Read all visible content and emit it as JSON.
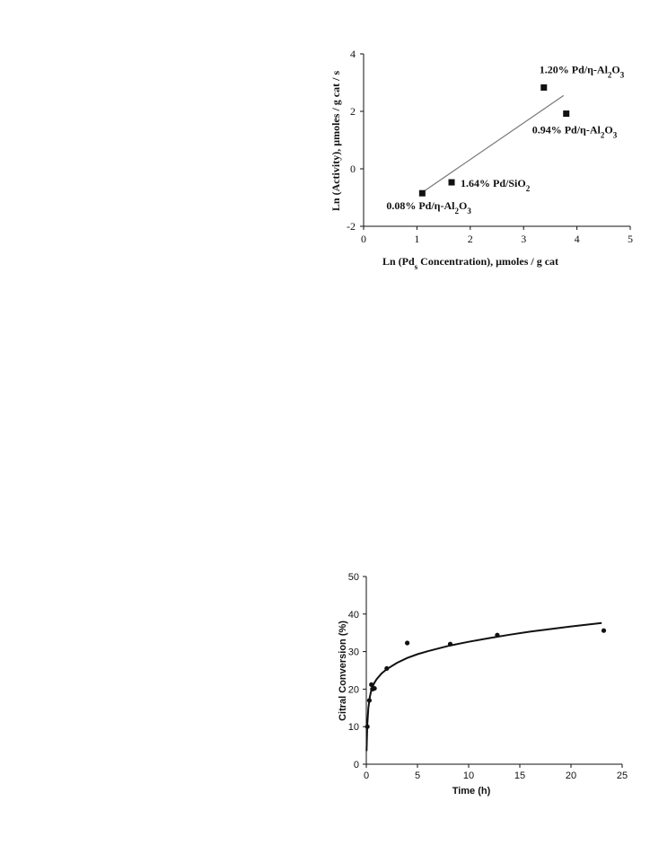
{
  "chart_data": [
    {
      "type": "scatter",
      "xlabel_parts": [
        "Ln (Pd",
        "s",
        " Concentration), µmoles / g cat"
      ],
      "ylabel": "Ln (Activity), µmoles / g cat / s",
      "xlim": [
        0,
        5
      ],
      "ylim": [
        -2,
        4
      ],
      "xticks": [
        "0",
        "1",
        "2",
        "3",
        "4",
        "5"
      ],
      "yticks": [
        "-2",
        "0",
        "2",
        "4"
      ],
      "points": [
        {
          "x": 1.1,
          "y": -0.85,
          "label": [
            "0.08% Pd/η-Al",
            "2",
            "O",
            "3"
          ]
        },
        {
          "x": 1.65,
          "y": -0.47,
          "label": [
            "1.64% Pd/SiO",
            "2",
            "",
            ""
          ]
        },
        {
          "x": 3.38,
          "y": 2.83,
          "label": [
            "1.20% Pd/η-Al",
            "2",
            "O",
            "3"
          ]
        },
        {
          "x": 3.8,
          "y": 1.92,
          "label": [
            "0.94% Pd/η-Al",
            "2",
            "O",
            "3"
          ]
        }
      ],
      "fit_line": {
        "x": [
          1.1,
          3.75
        ],
        "y": [
          -0.82,
          2.55
        ]
      },
      "grid": false
    },
    {
      "type": "scatter",
      "xlabel": "Time (h)",
      "ylabel": "Citral Conversion (%)",
      "xlim": [
        0,
        25
      ],
      "ylim": [
        0,
        50
      ],
      "xticks": [
        "0",
        "5",
        "10",
        "15",
        "20",
        "25"
      ],
      "yticks": [
        "0",
        "10",
        "20",
        "30",
        "40",
        "50"
      ],
      "points": [
        {
          "x": 0.1,
          "y": 10.0
        },
        {
          "x": 0.3,
          "y": 17.0
        },
        {
          "x": 0.5,
          "y": 21.2
        },
        {
          "x": 0.6,
          "y": 20.0
        },
        {
          "x": 0.8,
          "y": 20.2
        },
        {
          "x": 2.0,
          "y": 25.5
        },
        {
          "x": 4.0,
          "y": 32.3
        },
        {
          "x": 8.2,
          "y": 32.0
        },
        {
          "x": 12.8,
          "y": 34.4
        },
        {
          "x": 23.2,
          "y": 35.6
        }
      ],
      "fit_curve": {
        "x": [
          0.03,
          0.1,
          0.2,
          0.35,
          0.5,
          0.75,
          1.0,
          1.5,
          2.0,
          3.0,
          4.0,
          5.0,
          6.0,
          8.0,
          10.0,
          12.0,
          14.0,
          16.0,
          18.0,
          20.0,
          23.0
        ],
        "y": [
          3.5,
          10.5,
          15.0,
          18.0,
          19.8,
          21.5,
          22.6,
          24.2,
          25.3,
          27.0,
          28.3,
          29.3,
          30.1,
          31.5,
          32.6,
          33.6,
          34.5,
          35.3,
          36.0,
          36.7,
          37.6
        ]
      },
      "grid": false
    }
  ]
}
